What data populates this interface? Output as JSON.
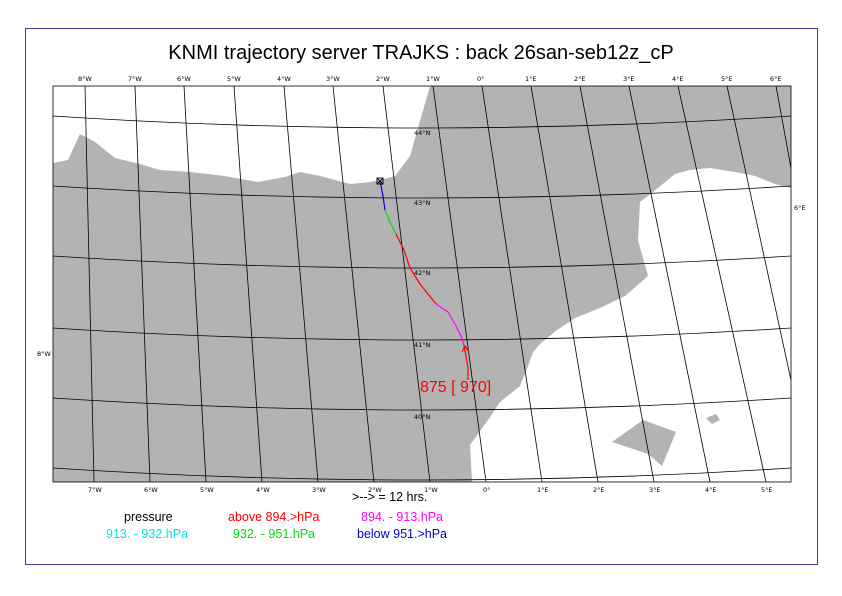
{
  "title": "KNMI trajectory server TRAJKS : back 26san-seb12z_cP",
  "scale_text": ">--> = 12 hrs.",
  "endpoint_label": "875 [ 970]",
  "top_lon_labels": [
    "8°W",
    "7°W",
    "6°W",
    "5°W",
    "4°W",
    "3°W",
    "2°W",
    "1°W",
    "0°",
    "1°E",
    "2°E",
    "3°E",
    "4°E",
    "5°E",
    "6°E"
  ],
  "bottom_lon_labels": [
    "7°W",
    "6°W",
    "5°W",
    "4°W",
    "3°W",
    "2°W",
    "1°W",
    "0°",
    "1°E",
    "2°E",
    "3°E",
    "4°E",
    "5°E"
  ],
  "lat_labels": [
    "44°N",
    "43°N",
    "42°N",
    "41°N",
    "40°N"
  ],
  "edge_labels": {
    "left": "8°W",
    "right": "6°E"
  },
  "legend": {
    "title": "pressure",
    "items": [
      {
        "label": "above 894.>hPa",
        "color": "#ff0000"
      },
      {
        "label": "894. -  913.hPa",
        "color": "#ff00ff"
      },
      {
        "label": "913. -  932.hPa",
        "color": "#00e5e5"
      },
      {
        "label": "932. -  951.hPa",
        "color": "#00dd00"
      },
      {
        "label": "below 951.>hPa",
        "color": "#0000cc"
      }
    ]
  },
  "colors": {
    "land": "#b3b3b3",
    "sea": "#ffffff",
    "frame": "#3a3a9a",
    "grid": "#000000"
  }
}
